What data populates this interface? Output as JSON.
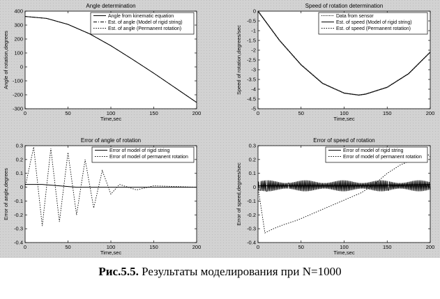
{
  "figure": {
    "background_color": "#d4d4d4",
    "axes_color": "#ffffff",
    "line_color": "#000000"
  },
  "caption": {
    "prefix": "Рис.5.5.",
    "text": " Результаты моделирования при N=1000"
  },
  "chart_data": [
    {
      "type": "line",
      "title": "Angle determination",
      "xlabel": "Time,sec",
      "ylabel": "Angle of rotation,degrees",
      "xlim": [
        0,
        200
      ],
      "ylim": [
        -300,
        400
      ],
      "xticks": [
        0,
        50,
        100,
        150,
        200
      ],
      "yticks": [
        400,
        300,
        200,
        100,
        0,
        -100,
        -200,
        -300
      ],
      "legend": "top-right",
      "series": [
        {
          "name": "Angle from kinematic equation",
          "style": "solid",
          "x": [
            0,
            25,
            50,
            75,
            100,
            125,
            150,
            175,
            200
          ],
          "y": [
            362,
            348,
            305,
            238,
            152,
            55,
            -45,
            -150,
            -255
          ]
        },
        {
          "name": "Est. of angle (Model of rigid string)",
          "style": "dashdot",
          "x": [
            0,
            25,
            50,
            75,
            100,
            125,
            150,
            175,
            200
          ],
          "y": [
            362,
            348,
            305,
            238,
            152,
            55,
            -45,
            -150,
            -255
          ]
        },
        {
          "name": "Est. of angle (Permanent rotation)",
          "style": "dotted",
          "x": [
            0,
            25,
            50,
            75,
            100,
            125,
            150,
            175,
            200
          ],
          "y": [
            362,
            348,
            305,
            238,
            152,
            55,
            -45,
            -150,
            -255
          ]
        }
      ]
    },
    {
      "type": "line",
      "title": "Speed of rotation determination",
      "xlabel": "Time,sec",
      "ylabel": "Speed of rotation,degrees/sec",
      "xlim": [
        0,
        200
      ],
      "ylim": [
        -5,
        0
      ],
      "xticks": [
        0,
        50,
        100,
        150,
        200
      ],
      "yticks": [
        0,
        -0.5,
        -1,
        -1.5,
        -2,
        -2.5,
        -3,
        -3.5,
        -4,
        -4.5,
        -5
      ],
      "legend": "top-right",
      "series": [
        {
          "name": "Data from sensor",
          "style": "points",
          "x": [
            0,
            25,
            50,
            75,
            100,
            117,
            125,
            150,
            175,
            200
          ],
          "y": [
            0,
            -1.5,
            -2.75,
            -3.7,
            -4.2,
            -4.3,
            -4.25,
            -3.9,
            -3.2,
            -2.1
          ]
        },
        {
          "name": "Est. of speed (Model of rigid string)",
          "style": "solid",
          "x": [
            0,
            25,
            50,
            75,
            100,
            117,
            125,
            150,
            175,
            200
          ],
          "y": [
            0,
            -1.5,
            -2.75,
            -3.7,
            -4.2,
            -4.3,
            -4.25,
            -3.9,
            -3.2,
            -2.1
          ]
        },
        {
          "name": "Est. of speed (Permanent rotation)",
          "style": "dotted",
          "x": [
            0,
            25,
            50,
            75,
            100,
            117,
            125,
            150,
            175,
            200
          ],
          "y": [
            0,
            -1.5,
            -2.75,
            -3.7,
            -4.2,
            -4.3,
            -4.25,
            -3.9,
            -3.2,
            -2.1
          ]
        }
      ]
    },
    {
      "type": "line",
      "title": "Error of angle of rotation",
      "xlabel": "Time,sec",
      "ylabel": "Error of angle,degrees",
      "xlim": [
        0,
        200
      ],
      "ylim": [
        -0.4,
        0.3
      ],
      "xticks": [
        0,
        50,
        100,
        150,
        200
      ],
      "yticks": [
        0.3,
        0.2,
        0.1,
        0,
        -0.1,
        -0.2,
        -0.3,
        -0.4
      ],
      "legend": "top-right",
      "series": [
        {
          "name": "Error of model of rigid string",
          "style": "solid",
          "x": [
            0,
            20,
            40,
            60,
            100,
            200
          ],
          "y": [
            0.02,
            0.02,
            0.01,
            0.0,
            0.0,
            0.0
          ]
        },
        {
          "name": "Error of model of permanent rotation",
          "style": "dotted",
          "x": [
            0,
            10,
            20,
            30,
            40,
            50,
            60,
            70,
            80,
            90,
            100,
            110,
            130,
            150,
            200
          ],
          "y": [
            0,
            0.29,
            -0.28,
            0.28,
            -0.25,
            0.25,
            -0.2,
            0.2,
            -0.15,
            0.12,
            -0.05,
            0.02,
            -0.02,
            0.01,
            0
          ]
        }
      ]
    },
    {
      "type": "line",
      "title": "Error of speed of rotation",
      "xlabel": "Time,sec",
      "ylabel": "Error of speed,degrees/sec",
      "xlim": [
        0,
        200
      ],
      "ylim": [
        -0.4,
        0.3
      ],
      "xticks": [
        0,
        50,
        100,
        150,
        200
      ],
      "yticks": [
        0.3,
        0.2,
        0.1,
        0,
        -0.1,
        -0.2,
        -0.3,
        -0.4
      ],
      "legend": "top-right",
      "series": [
        {
          "name": "Error of model of rigid string",
          "style": "solid",
          "x": [
            0,
            100,
            200
          ],
          "y": [
            0.01,
            0.01,
            0.02
          ]
        },
        {
          "name": "Error of model of permanent rotation",
          "style": "dotted",
          "x": [
            0,
            8,
            18,
            30,
            45,
            60,
            75,
            90,
            105,
            120,
            135,
            150,
            165,
            180,
            195,
            200
          ],
          "y": [
            0,
            -0.33,
            -0.3,
            -0.27,
            -0.24,
            -0.2,
            -0.16,
            -0.12,
            -0.08,
            -0.04,
            0.02,
            0.1,
            0.16,
            0.2,
            0.25,
            0.22
          ]
        }
      ]
    }
  ]
}
